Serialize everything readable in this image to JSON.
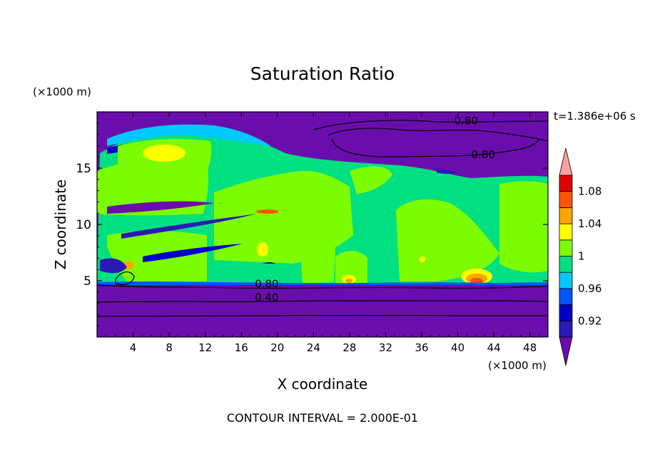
{
  "chart_data": {
    "type": "heatmap",
    "title": "Saturation Ratio",
    "xlabel": "X coordinate",
    "ylabel": "Z coordinate",
    "x_unit": "(×1000 m)",
    "y_unit": "(×1000 m)",
    "time_label": "t=1.386e+06 s",
    "contour_interval_label": "CONTOUR INTERVAL = 2.000E-01",
    "xlim": [
      0,
      50
    ],
    "ylim": [
      0,
      20
    ],
    "x_ticks": [
      4,
      8,
      12,
      16,
      20,
      24,
      28,
      32,
      36,
      40,
      44,
      48
    ],
    "y_ticks": [
      5,
      10,
      15
    ],
    "contour_labels": [
      {
        "text": "0.80",
        "x": 39.6,
        "z": 18.9
      },
      {
        "text": "0.80",
        "x": 41.5,
        "z": 15.9
      },
      {
        "text": "0.80",
        "x": 17.5,
        "z": 4.4
      },
      {
        "text": "0.40",
        "x": 17.5,
        "z": 3.2
      }
    ],
    "colorbar": {
      "levels": [
        0.9,
        0.92,
        0.94,
        0.96,
        0.98,
        1.0,
        1.02,
        1.04,
        1.06,
        1.08,
        1.1
      ],
      "tick_labels": [
        "0.92",
        "0.96",
        "1",
        "1.04",
        "1.08"
      ],
      "tick_values": [
        0.92,
        0.96,
        1.0,
        1.04,
        1.08
      ],
      "colors": [
        "#6a0dad",
        "#2a1ab5",
        "#0000c8",
        "#0055ff",
        "#00c8ff",
        "#00e080",
        "#7cfc00",
        "#ffff00",
        "#ffa500",
        "#ff5500",
        "#e00000"
      ],
      "under_color": "#6a0dad",
      "over_color": "#ffa0a0"
    }
  }
}
